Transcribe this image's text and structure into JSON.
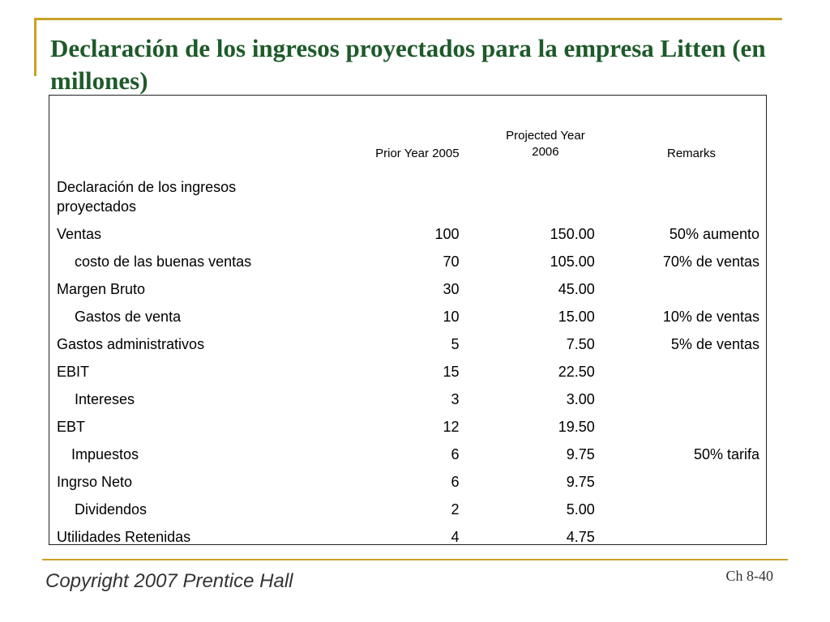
{
  "slide": {
    "title": "Declaración de los ingresos proyectados para la empresa Litten (en millones)",
    "footer_copyright": "Copyright 2007 Prentice Hall",
    "footer_chapter": "Ch 8-40",
    "accent_color": "#c9a227",
    "title_color": "#1e5a2a"
  },
  "table": {
    "headers": {
      "prior": "Prior Year 2005",
      "projected_line1": "Projected Year",
      "projected_line2": "2006",
      "remarks": "Remarks"
    },
    "section_label": "Declaración de los ingresos proyectados",
    "rows": [
      {
        "label": "Ventas",
        "prior": "100",
        "projected": "150.00",
        "remarks": "50% aumento",
        "indent": "none"
      },
      {
        "label": "costo de las buenas ventas",
        "prior": "70",
        "projected": "105.00",
        "remarks": "70% de ventas",
        "indent": "indent"
      },
      {
        "label": "Margen Bruto",
        "prior": "30",
        "projected": "45.00",
        "remarks": "",
        "indent": "none"
      },
      {
        "label": "Gastos de venta",
        "prior": "10",
        "projected": "15.00",
        "remarks": "10% de ventas",
        "indent": "indent"
      },
      {
        "label": "Gastos administrativos",
        "prior": "5",
        "projected": "7.50",
        "remarks": "5% de ventas",
        "indent": "none"
      },
      {
        "label": "EBIT",
        "prior": "15",
        "projected": "22.50",
        "remarks": "",
        "indent": "none"
      },
      {
        "label": "Intereses",
        "prior": "3",
        "projected": "3.00",
        "remarks": "",
        "indent": "indent"
      },
      {
        "label": "EBT",
        "prior": "12",
        "projected": "19.50",
        "remarks": "",
        "indent": "none"
      },
      {
        "label": "Impuestos",
        "prior": "6",
        "projected": "9.75",
        "remarks": "50% tarifa",
        "indent": "indent-s"
      },
      {
        "label": "Ingrso Neto",
        "prior": "6",
        "projected": "9.75",
        "remarks": "",
        "indent": "none"
      },
      {
        "label": "Dividendos",
        "prior": "2",
        "projected": "5.00",
        "remarks": "",
        "indent": "indent"
      },
      {
        "label": "Utilidades Retenidas",
        "prior": "4",
        "projected": "4.75",
        "remarks": "",
        "indent": "none"
      }
    ]
  }
}
